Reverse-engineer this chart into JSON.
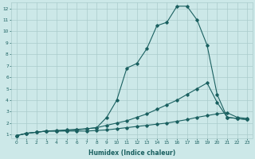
{
  "xlabel": "Humidex (Indice chaleur)",
  "bg_color": "#cce8e8",
  "grid_color": "#aacccc",
  "line_color": "#1a6060",
  "xlim": [
    -0.5,
    23.5
  ],
  "ylim": [
    0.7,
    12.5
  ],
  "xticks": [
    0,
    1,
    2,
    3,
    4,
    5,
    6,
    7,
    8,
    9,
    10,
    11,
    12,
    13,
    14,
    15,
    16,
    17,
    18,
    19,
    20,
    21,
    22,
    23
  ],
  "yticks": [
    1,
    2,
    3,
    4,
    5,
    6,
    7,
    8,
    9,
    10,
    11,
    12
  ],
  "line1_x": [
    0,
    1,
    2,
    3,
    4,
    5,
    6,
    7,
    8,
    9,
    10,
    11,
    12,
    13,
    14,
    15,
    16,
    17,
    18,
    19,
    20,
    21,
    22,
    23
  ],
  "line1_y": [
    0.9,
    1.1,
    1.2,
    1.3,
    1.3,
    1.3,
    1.3,
    1.3,
    1.35,
    1.4,
    1.5,
    1.6,
    1.7,
    1.8,
    1.9,
    2.0,
    2.15,
    2.3,
    2.5,
    2.65,
    2.8,
    2.9,
    2.5,
    2.4
  ],
  "line2_x": [
    0,
    1,
    2,
    3,
    4,
    5,
    6,
    7,
    8,
    9,
    10,
    11,
    12,
    13,
    14,
    15,
    16,
    17,
    18,
    19,
    20,
    21,
    22,
    23
  ],
  "line2_y": [
    0.9,
    1.1,
    1.2,
    1.3,
    1.3,
    1.35,
    1.4,
    1.5,
    1.6,
    1.8,
    2.0,
    2.2,
    2.5,
    2.8,
    3.2,
    3.6,
    4.0,
    4.5,
    5.0,
    5.5,
    3.8,
    2.5,
    2.4,
    2.3
  ],
  "line3_x": [
    0,
    1,
    2,
    3,
    4,
    5,
    6,
    7,
    8,
    9,
    10,
    11,
    12,
    13,
    14,
    15,
    16,
    17,
    18,
    19,
    20,
    21,
    22,
    23
  ],
  "line3_y": [
    0.9,
    1.1,
    1.2,
    1.3,
    1.35,
    1.4,
    1.45,
    1.5,
    1.6,
    2.5,
    4.0,
    6.8,
    7.2,
    8.5,
    10.5,
    10.8,
    12.2,
    12.2,
    11.0,
    8.8,
    4.5,
    2.5,
    2.4,
    2.3
  ]
}
